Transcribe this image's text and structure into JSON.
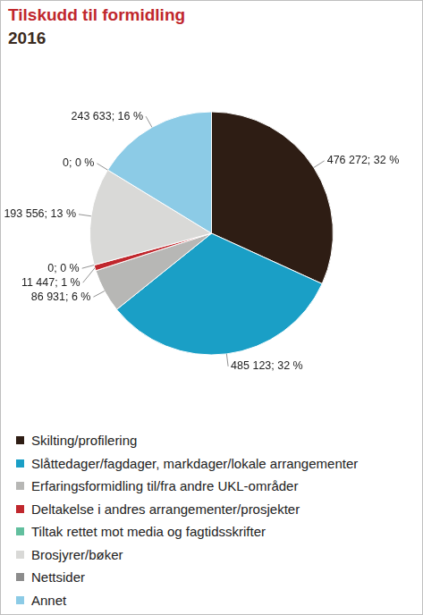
{
  "chart_data": {
    "type": "pie",
    "title": "Tilskudd til formidling",
    "subtitle": "2016",
    "categories": [
      "Skilting/profilering",
      "Slåttedager/fagdager, markdager/lokale arrangementer",
      "Erfaringsformidling til/fra andre UKL-områder",
      "Deltakelse i andres arrangementer/prosjekter",
      "Tiltak rettet mot media og fagtidsskrifter",
      "Brosjyrer/bøker",
      "Nettsider",
      "Annet"
    ],
    "values": [
      476272,
      485123,
      86931,
      11447,
      0,
      193556,
      0,
      243633
    ],
    "value_labels": [
      "476 272; 32 %",
      "485 123; 32 %",
      "86 931; 6 %",
      "11 447; 1 %",
      "0; 0 %",
      "193 556; 13 %",
      "0; 0 %",
      "243 633; 16 %"
    ],
    "colors": [
      "#2e1d14",
      "#1a9fc6",
      "#b7b7b5",
      "#c0272d",
      "#62bf9e",
      "#d9d9d7",
      "#8c8c8c",
      "#8ccbe6"
    ],
    "data_labels": true,
    "legend": "bottom"
  }
}
